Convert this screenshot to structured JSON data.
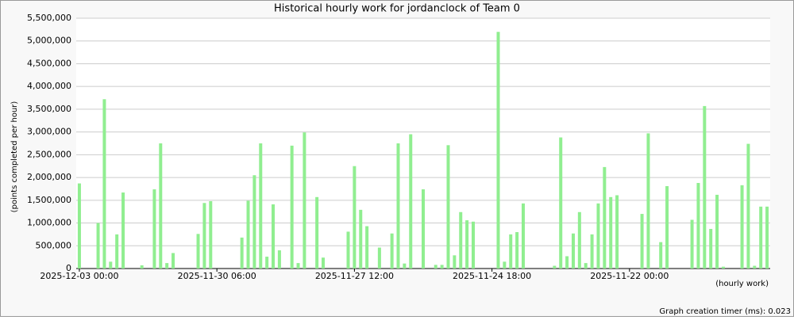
{
  "chart_data": {
    "type": "bar",
    "title": "Historical hourly work for jordanclock of Team 0",
    "y_label": "(points completed per hour)",
    "x_label": "(hourly work)",
    "footer": "Graph creation timer (ms): 0.023",
    "color": "#90ee90",
    "grid": true,
    "ylim": [
      0,
      5500000
    ],
    "yticks": [
      0,
      {
        "value": 500000,
        "label": "500,000"
      },
      {
        "value": 1000000,
        "label": "1,000,000"
      },
      {
        "value": 1500000,
        "label": "1,500,000"
      },
      {
        "value": 2000000,
        "label": "2,000,000"
      },
      {
        "value": 2500000,
        "label": "2,500,000"
      },
      {
        "value": 3000000,
        "label": "3,000,000"
      },
      {
        "value": 3500000,
        "label": "3,500,000"
      },
      {
        "value": 4000000,
        "label": "4,000,000"
      },
      {
        "value": 4500000,
        "label": "4,500,000"
      },
      {
        "value": 5000000,
        "label": "5,000,000"
      },
      {
        "value": 5500000,
        "label": "5,500,000"
      }
    ],
    "categories": [
      "2025-12-03 00:00",
      null,
      null,
      null,
      null,
      null,
      null,
      null,
      null,
      null,
      null,
      null,
      null,
      null,
      null,
      null,
      null,
      null,
      null,
      null,
      null,
      null,
      "2025-11-30 06:00",
      null,
      null,
      null,
      null,
      null,
      null,
      null,
      null,
      null,
      null,
      null,
      null,
      null,
      null,
      null,
      null,
      null,
      null,
      null,
      null,
      null,
      "2025-11-27 12:00",
      null,
      null,
      null,
      null,
      null,
      null,
      null,
      null,
      null,
      null,
      null,
      null,
      null,
      null,
      null,
      null,
      null,
      null,
      null,
      null,
      null,
      "2025-11-24 18:00",
      null,
      null,
      null,
      null,
      null,
      null,
      null,
      null,
      null,
      null,
      null,
      null,
      null,
      null,
      null,
      null,
      null,
      null,
      null,
      null,
      null,
      "2025-11-22 00:00",
      null,
      null,
      null,
      null,
      null,
      null,
      null,
      null,
      null,
      null,
      null,
      null,
      null,
      null,
      null,
      null,
      null,
      null,
      null,
      null,
      null,
      null
    ],
    "values": [
      1870000,
      0,
      0,
      1000000,
      3720000,
      150000,
      750000,
      1670000,
      0,
      0,
      70000,
      0,
      1740000,
      2750000,
      120000,
      340000,
      0,
      0,
      0,
      760000,
      1440000,
      1480000,
      0,
      0,
      0,
      0,
      680000,
      1490000,
      2050000,
      2750000,
      260000,
      1410000,
      400000,
      0,
      2700000,
      120000,
      2990000,
      0,
      1570000,
      240000,
      0,
      0,
      0,
      810000,
      2250000,
      1290000,
      930000,
      0,
      460000,
      0,
      770000,
      2750000,
      110000,
      2950000,
      0,
      1740000,
      0,
      80000,
      80000,
      2710000,
      290000,
      1240000,
      1060000,
      1030000,
      0,
      0,
      0,
      5200000,
      150000,
      750000,
      800000,
      1430000,
      0,
      0,
      0,
      0,
      60000,
      2880000,
      270000,
      770000,
      1240000,
      120000,
      750000,
      1430000,
      2230000,
      1570000,
      1610000,
      0,
      0,
      0,
      1200000,
      2970000,
      0,
      580000,
      1810000,
      0,
      0,
      0,
      1070000,
      1880000,
      3570000,
      870000,
      1620000,
      40000,
      0,
      0,
      1830000,
      2740000,
      60000,
      1360000,
      1360000
    ]
  }
}
